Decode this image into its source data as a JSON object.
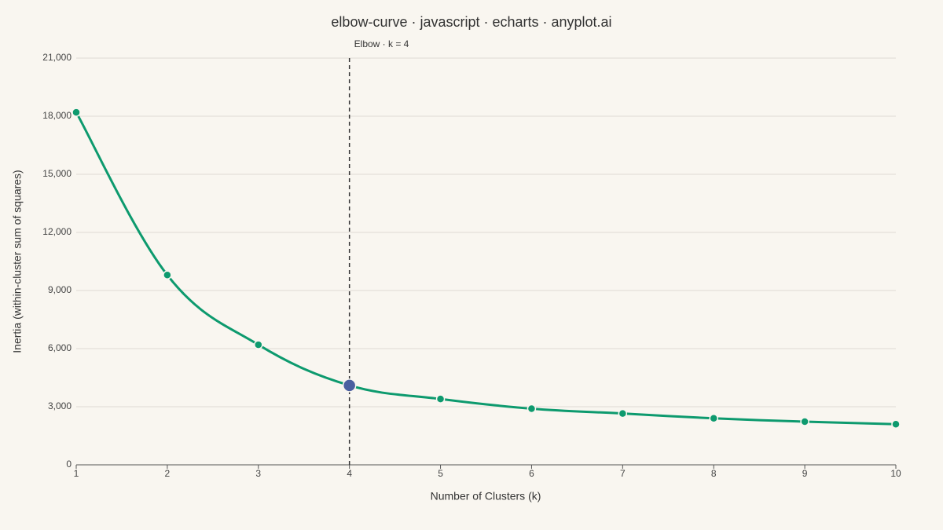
{
  "chart_data": {
    "type": "line",
    "title": "elbow-curve · javascript · echarts · anyplot.ai",
    "x_label": "Number of Clusters (k)",
    "y_label": "Inertia (within-cluster sum of squares)",
    "x": [
      1,
      2,
      3,
      4,
      5,
      6,
      7,
      8,
      9,
      10
    ],
    "series": [
      {
        "name": "Inertia",
        "color": "#0d9a6e",
        "values": [
          18200,
          9800,
          6200,
          4100,
          3400,
          2900,
          2650,
          2400,
          2230,
          2100
        ]
      }
    ],
    "elbow": {
      "x": 4,
      "label": "Elbow · k = 4",
      "color": "#4a5fa0"
    },
    "xlim": [
      1,
      10
    ],
    "xticks": [
      1,
      2,
      3,
      4,
      5,
      6,
      7,
      8,
      9,
      10
    ],
    "ylim": [
      0,
      21000
    ],
    "yticks": [
      0,
      {
        "value": 3000,
        "label": "3,000"
      },
      {
        "value": 6000,
        "label": "6,000"
      },
      {
        "value": 9000,
        "label": "9,000"
      },
      {
        "value": 12000,
        "label": "12,000"
      },
      {
        "value": 15000,
        "label": "15,000"
      },
      {
        "value": 18000,
        "label": "18,000"
      },
      {
        "value": 21000,
        "label": "21,000"
      }
    ],
    "grid": true
  }
}
